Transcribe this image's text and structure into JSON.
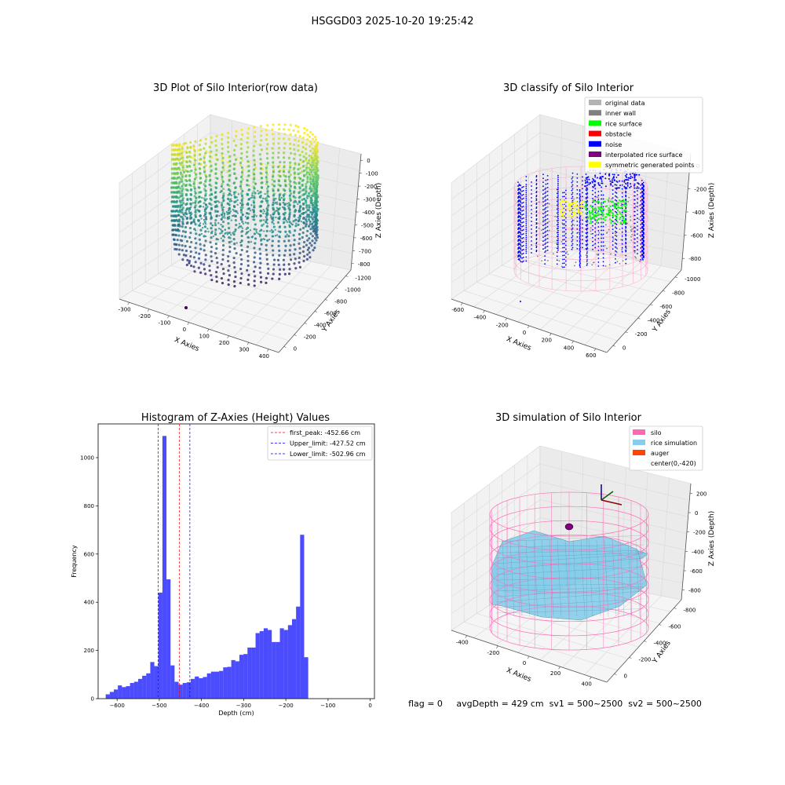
{
  "figure": {
    "suptitle": "HSGGD03 2025-10-20 19:25:42",
    "status_line": "flag = 0     avgDepth = 429 cm  sv1 = 500~2500  sv2 = 500~2500"
  },
  "panels": {
    "raw3d": {
      "title": "3D Plot of Silo Interior(row data)",
      "xlabel": "X Axies",
      "ylabel": "Y Axies",
      "zlabel": "Z Axies (Depth)",
      "xticks": [
        "-300",
        "-200",
        "-100",
        "0",
        "100",
        "200",
        "300",
        "400"
      ],
      "yticks": [
        "0",
        "-200",
        "-400",
        "-600",
        "-800",
        "-1000",
        "-1200"
      ],
      "zticks": [
        "0",
        "-100",
        "-200",
        "-300",
        "-400",
        "-500",
        "-600",
        "-700",
        "-800"
      ],
      "colormap": "viridis"
    },
    "classify3d": {
      "title": "3D classify of Silo Interior",
      "xlabel": "X Axies",
      "ylabel": "Y Axies",
      "zlabel": "Z Axies (Depth)",
      "xticks": [
        "-600",
        "-400",
        "-200",
        "0",
        "200",
        "400",
        "600"
      ],
      "yticks": [
        "0",
        "-200",
        "-400",
        "-600",
        "-800",
        "-1000"
      ],
      "zticks": [
        "0",
        "-200",
        "-400",
        "-600",
        "-800"
      ],
      "legend": [
        {
          "label": "original data",
          "color": "#b3b3b3"
        },
        {
          "label": "inner wall",
          "color": "#808080"
        },
        {
          "label": "rice surface",
          "color": "#00ff00"
        },
        {
          "label": "obstacle",
          "color": "#ff0000"
        },
        {
          "label": "noise",
          "color": "#0000ff"
        },
        {
          "label": "interpolated rice surface",
          "color": "#800080"
        },
        {
          "label": "symmetric generated points",
          "color": "#ffff00"
        }
      ]
    },
    "sim3d": {
      "title": "3D simulation of Silo Interior",
      "xlabel": "X Axies",
      "ylabel": "Y Axies",
      "zlabel": "Z Axies (Depth)",
      "xticks": [
        "-400",
        "-200",
        "0",
        "200",
        "400"
      ],
      "yticks": [
        "0",
        "-200",
        "-400",
        "-600",
        "-800"
      ],
      "zticks": [
        "200",
        "0",
        "-200",
        "-400",
        "-600",
        "-800"
      ],
      "legend": [
        {
          "label": "silo",
          "color": "#ff69b4"
        },
        {
          "label": "rice simulation",
          "color": "#87ceeb"
        },
        {
          "label": "auger",
          "color": "#ff4500"
        },
        {
          "label": "center(0,-420)",
          "color": "none"
        }
      ]
    }
  },
  "chart_data": [
    {
      "type": "bar",
      "title": "Histogram of Z-Axies (Height) Values",
      "xlabel": "Depth (cm)",
      "ylabel": "Frequency",
      "xlim": [
        -645,
        10
      ],
      "ylim": [
        0,
        1140
      ],
      "xticks": [
        -600,
        -500,
        -400,
        -300,
        -200,
        -100,
        0
      ],
      "yticks": [
        0,
        200,
        400,
        600,
        800,
        1000
      ],
      "bar_color": "#0000ff",
      "bar_alpha": 0.7,
      "bin_start": -627,
      "bin_width": 9.6,
      "values": [
        18,
        28,
        38,
        55,
        48,
        52,
        65,
        70,
        82,
        95,
        105,
        152,
        135,
        440,
        1090,
        495,
        138,
        70,
        58,
        65,
        68,
        82,
        92,
        85,
        90,
        105,
        112,
        112,
        115,
        130,
        132,
        160,
        155,
        182,
        185,
        212,
        212,
        272,
        280,
        292,
        285,
        235,
        235,
        292,
        285,
        305,
        330,
        382,
        680,
        172
      ],
      "vlines": [
        {
          "x": -452.66,
          "color": "#ff0000",
          "label": "first_peak: -452.66 cm"
        },
        {
          "x": -427.52,
          "color": "#0000ff",
          "label": "Upper_limit: -427.52 cm"
        },
        {
          "x": -502.96,
          "color": "#0000ff",
          "label": "Lower_limit: -502.96 cm"
        }
      ],
      "legend_position": "top-right"
    }
  ]
}
